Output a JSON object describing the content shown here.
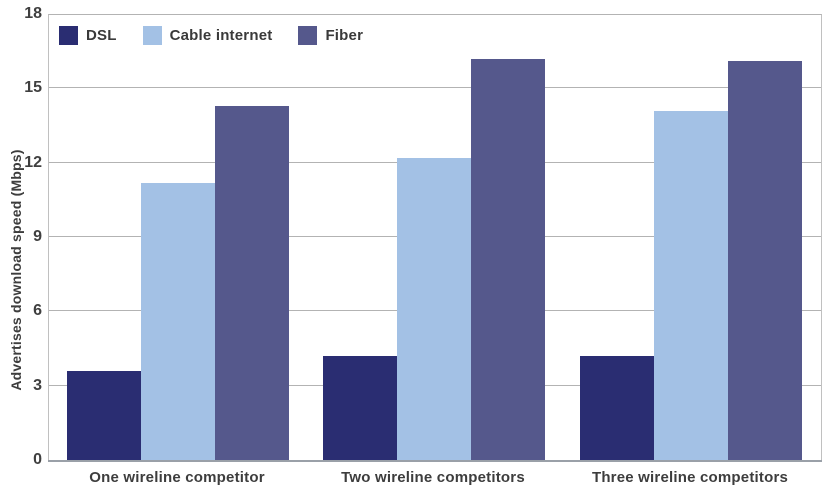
{
  "chart_data": {
    "type": "bar",
    "title": "",
    "xlabel": "",
    "ylabel": "Advertises download speed (Mbps)",
    "categories": [
      "One wireline competitor",
      "Two wireline competitors",
      "Three wireline competitors"
    ],
    "series": [
      {
        "name": "DSL",
        "color": "#2a2d72",
        "values": [
          3.6,
          4.2,
          4.2
        ]
      },
      {
        "name": "Cable internet",
        "color": "#a3c1e5",
        "values": [
          11.2,
          12.2,
          14.1
        ]
      },
      {
        "name": "Fiber",
        "color": "#55588c",
        "values": [
          14.3,
          16.2,
          16.1
        ]
      }
    ],
    "ylim": [
      0,
      18
    ],
    "yticks": [
      0,
      3,
      6,
      9,
      12,
      15,
      18
    ],
    "grid": true,
    "legend_position": "top-left",
    "background": "#ffffff",
    "gridline_color": "#b3b3b3"
  }
}
